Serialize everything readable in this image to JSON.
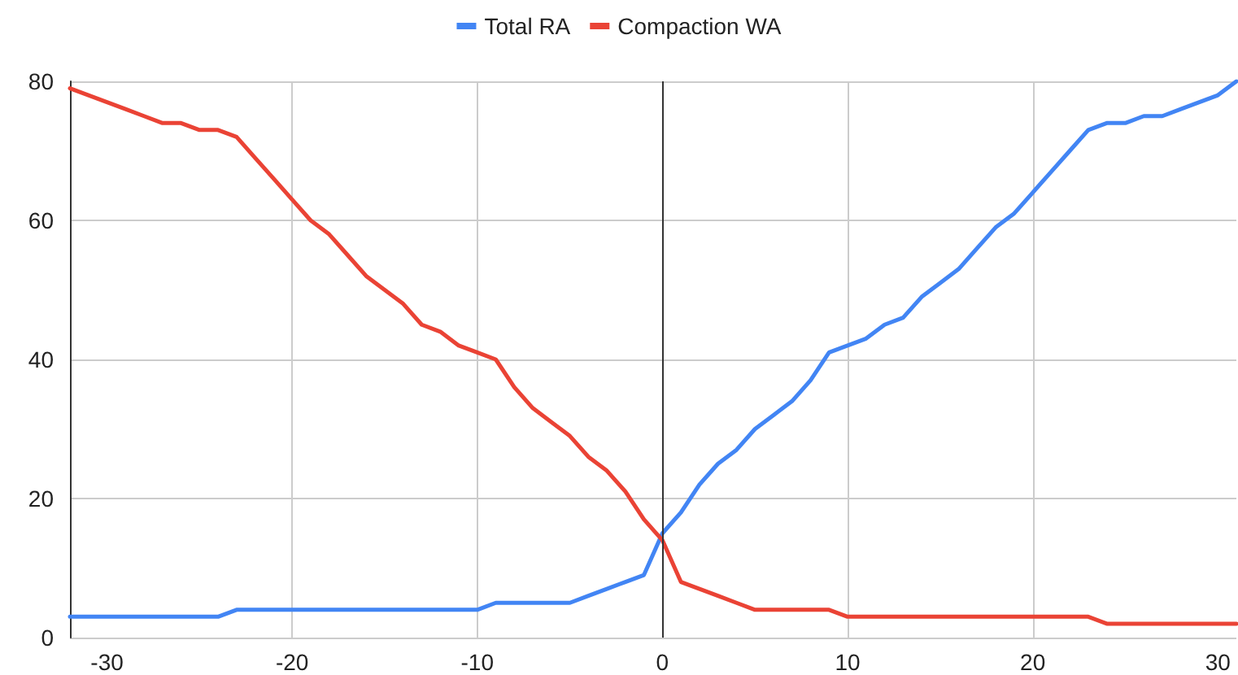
{
  "chart_data": {
    "type": "line",
    "x": [
      -32,
      -31,
      -30,
      -29,
      -28,
      -27,
      -26,
      -25,
      -24,
      -23,
      -22,
      -21,
      -20,
      -19,
      -18,
      -17,
      -16,
      -15,
      -14,
      -13,
      -12,
      -11,
      -10,
      -9,
      -8,
      -7,
      -6,
      -5,
      -4,
      -3,
      -2,
      -1,
      0,
      1,
      2,
      3,
      4,
      5,
      6,
      7,
      8,
      9,
      10,
      11,
      12,
      13,
      14,
      15,
      16,
      17,
      18,
      19,
      20,
      21,
      22,
      23,
      24,
      25,
      26,
      27,
      28,
      29,
      30,
      31
    ],
    "series": [
      {
        "name": "Total RA",
        "color": "#4285f4",
        "values": [
          3,
          3,
          3,
          3,
          3,
          3,
          3,
          3,
          3,
          4,
          4,
          4,
          4,
          4,
          4,
          4,
          4,
          4,
          4,
          4,
          4,
          4,
          4,
          5,
          5,
          5,
          5,
          5,
          6,
          7,
          8,
          9,
          15,
          18,
          22,
          25,
          27,
          30,
          32,
          34,
          37,
          41,
          42,
          43,
          45,
          46,
          49,
          51,
          53,
          56,
          59,
          61,
          64,
          67,
          70,
          73,
          74,
          74,
          75,
          75,
          76,
          77,
          78,
          80
        ]
      },
      {
        "name": "Compaction WA",
        "color": "#ea4335",
        "values": [
          79,
          78,
          77,
          76,
          75,
          74,
          74,
          73,
          73,
          72,
          69,
          66,
          63,
          60,
          58,
          55,
          52,
          50,
          48,
          45,
          44,
          42,
          41,
          40,
          36,
          33,
          31,
          29,
          26,
          24,
          21,
          17,
          14,
          8,
          7,
          6,
          5,
          4,
          4,
          4,
          4,
          4,
          3,
          3,
          3,
          3,
          3,
          3,
          3,
          3,
          3,
          3,
          3,
          3,
          3,
          3,
          2,
          2,
          2,
          2,
          2,
          2,
          2,
          2
        ]
      }
    ],
    "xlim": [
      -32,
      31
    ],
    "xticks": [
      -30,
      -20,
      -10,
      0,
      10,
      20,
      30
    ],
    "ylim": [
      0,
      80
    ],
    "yticks": [
      0,
      20,
      40,
      60,
      80
    ],
    "ref_lines": [
      {
        "axis": "x",
        "value": 0,
        "color": "#333333"
      }
    ],
    "grid": true,
    "legend": "top",
    "marker": "none",
    "line_style": "solid"
  }
}
